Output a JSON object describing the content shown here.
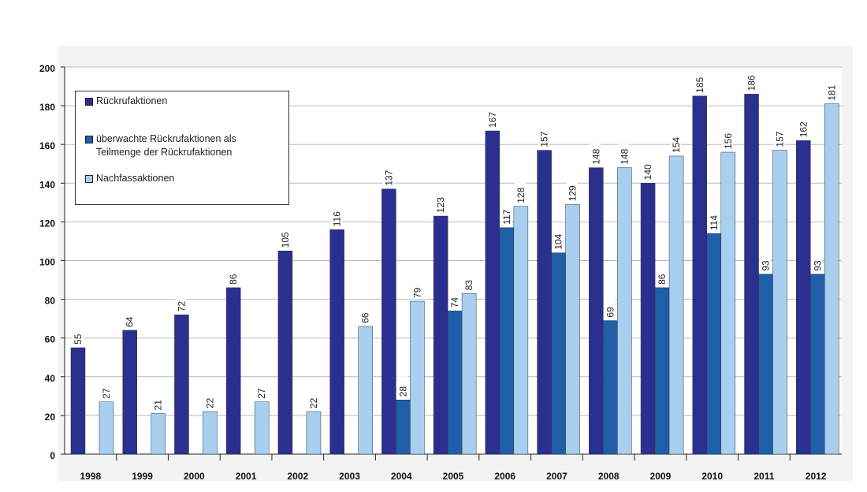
{
  "chart_data": {
    "type": "bar",
    "categories": [
      "1998",
      "1999",
      "2000",
      "2001",
      "2002",
      "2003",
      "2004",
      "2005",
      "2006",
      "2007",
      "2008",
      "2009",
      "2010",
      "2011",
      "2012"
    ],
    "series": [
      {
        "name": "Rückrufaktionen",
        "color": "#2b2f8f",
        "values": [
          55,
          64,
          72,
          86,
          105,
          116,
          137,
          123,
          167,
          157,
          148,
          140,
          185,
          186,
          162
        ]
      },
      {
        "name": "überwachte Rückrufaktionen als Teilmenge der Rückrufaktionen",
        "color": "#1f5fa9",
        "values": [
          null,
          null,
          null,
          null,
          null,
          null,
          28,
          74,
          117,
          104,
          69,
          86,
          114,
          93,
          93
        ]
      },
      {
        "name": "Nachfassaktionen",
        "color": "#a8cff0",
        "values": [
          27,
          21,
          22,
          27,
          22,
          66,
          79,
          83,
          128,
          129,
          148,
          154,
          156,
          157,
          181
        ]
      }
    ],
    "ylim": [
      0,
      200
    ],
    "yticks": [
      0,
      20,
      40,
      60,
      80,
      100,
      120,
      140,
      160,
      180,
      200
    ],
    "grid": true
  }
}
